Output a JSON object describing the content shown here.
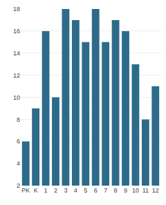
{
  "chart_data": {
    "type": "bar",
    "categories": [
      "PK",
      "K",
      "1",
      "2",
      "3",
      "4",
      "5",
      "6",
      "7",
      "8",
      "9",
      "10",
      "11",
      "12"
    ],
    "values": [
      6,
      9,
      16,
      10,
      18,
      17,
      15,
      18,
      15,
      17,
      16,
      13,
      8,
      11
    ],
    "color": "#2d6b8a",
    "ylim": [
      2,
      18
    ],
    "yticks": [
      2,
      4,
      6,
      8,
      10,
      12,
      14,
      16,
      18
    ],
    "grid": true
  }
}
